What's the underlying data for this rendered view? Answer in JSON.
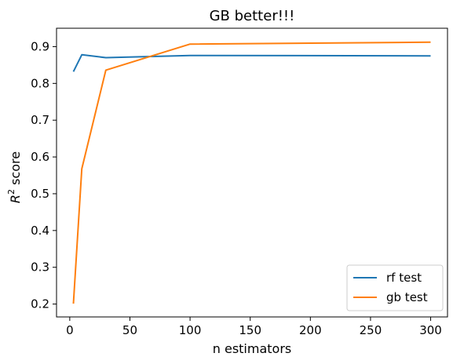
{
  "chart_data": {
    "type": "line",
    "title": "GB better!!!",
    "xlabel": "n estimators",
    "ylabel": {
      "base": "R",
      "sup": "2",
      "rest": " score"
    },
    "xlim": [
      -11,
      314
    ],
    "ylim": [
      0.165,
      0.95
    ],
    "xticks": [
      0,
      50,
      100,
      150,
      200,
      250,
      300
    ],
    "yticks": [
      0.2,
      0.3,
      0.4,
      0.5,
      0.6,
      0.7,
      0.8,
      0.9
    ],
    "ytick_labels": [
      "0.2",
      "0.3",
      "0.4",
      "0.5",
      "0.6",
      "0.7",
      "0.8",
      "0.9"
    ],
    "grid": false,
    "legend": "lower-right",
    "series": [
      {
        "name": "rf test",
        "color": "#1f77b4",
        "x": [
          3,
          10,
          30,
          100,
          300
        ],
        "y": [
          0.832,
          0.878,
          0.87,
          0.876,
          0.875
        ]
      },
      {
        "name": "gb test",
        "color": "#ff7f0e",
        "x": [
          3,
          10,
          30,
          100,
          300
        ],
        "y": [
          0.201,
          0.568,
          0.836,
          0.907,
          0.912
        ]
      }
    ]
  }
}
